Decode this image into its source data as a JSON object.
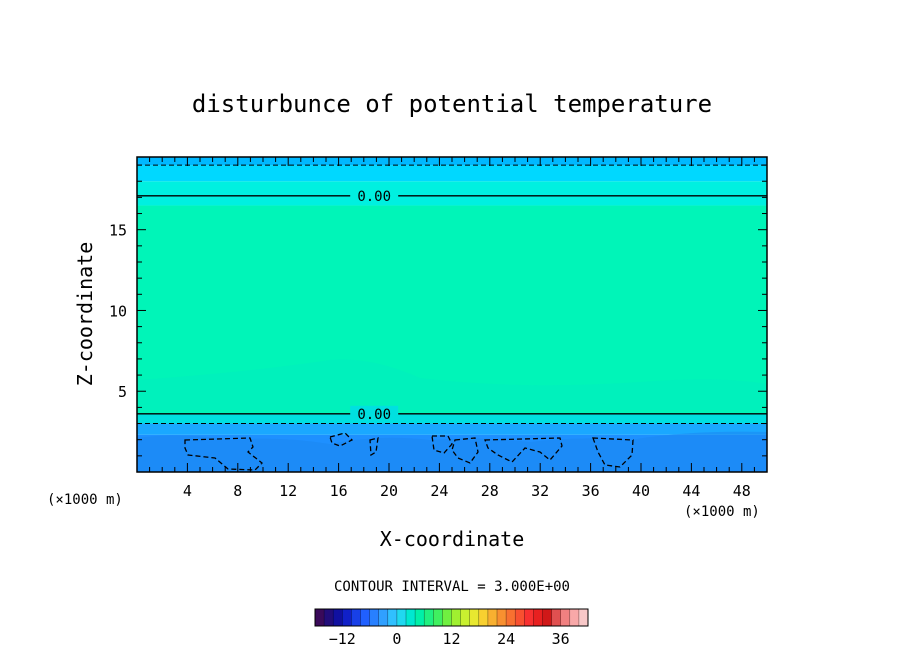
{
  "chart_data": {
    "type": "heatmap",
    "title": "disturbunce of potential temperature",
    "xlabel": "X-coordinate",
    "ylabel": "Z-coordinate",
    "x_unit": "(×1000 m)",
    "y_unit": "(×1000 m)",
    "xlim": [
      0,
      50
    ],
    "ylim": [
      0,
      19.5
    ],
    "xticks": [
      4,
      8,
      12,
      16,
      20,
      24,
      28,
      32,
      36,
      40,
      44,
      48
    ],
    "yticks": [
      5,
      10,
      15
    ],
    "contour_interval_text": "CONTOUR INTERVAL = 3.000E+00",
    "contour_labels": [
      {
        "text": "0.00",
        "x": 17,
        "z": 17.1
      },
      {
        "text": "0.00",
        "x": 17,
        "z": 3.6
      }
    ],
    "bands": [
      {
        "z0": 0,
        "z1": 2.3,
        "color": "#1e90ff"
      },
      {
        "z0": 2.3,
        "z1": 3.0,
        "color": "#1aa8ff"
      },
      {
        "z0": 3.0,
        "z1": 3.6,
        "color": "#00e0e0"
      },
      {
        "z0": 3.6,
        "z1": 16.5,
        "color": "#00f5b8"
      },
      {
        "z0": 16.5,
        "z1": 18.0,
        "color": "#00f0e0"
      },
      {
        "z0": 18.0,
        "z1": 19.0,
        "color": "#00d8ff"
      },
      {
        "z0": 19.0,
        "z1": 19.5,
        "color": "#00b8ff"
      }
    ],
    "solid_contours_z": [
      17.1,
      3.6
    ],
    "dashed_contours_z": [
      19.0,
      3.0
    ],
    "colorbar": {
      "min": -18,
      "max": 42,
      "ticks": [
        -12,
        0,
        12,
        24,
        36
      ],
      "colors": [
        "#3a0a5a",
        "#220d7a",
        "#1010a0",
        "#1020c8",
        "#1840e8",
        "#2060ff",
        "#2880ff",
        "#30a0ff",
        "#30c0ff",
        "#20d8f0",
        "#00e8d0",
        "#00f0a8",
        "#20f080",
        "#40f060",
        "#70f040",
        "#a0f030",
        "#c8f030",
        "#e8e830",
        "#f8d030",
        "#f8b030",
        "#f89030",
        "#f87030",
        "#f85030",
        "#f83030",
        "#e82020",
        "#d01818",
        "#e05050",
        "#f08080",
        "#f8a8a8",
        "#f8c8c8"
      ]
    }
  }
}
